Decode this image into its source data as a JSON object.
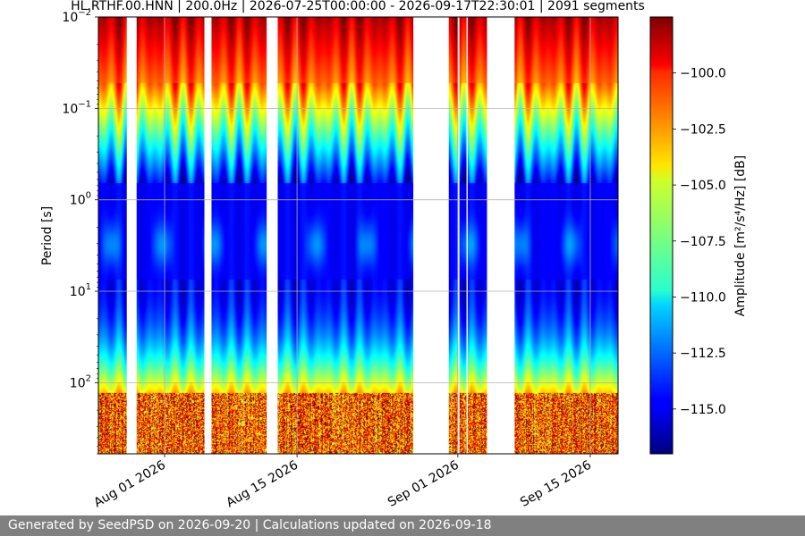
{
  "chart_data": {
    "type": "heatmap",
    "title": "HL.RTHF.00.HNN | 200.0Hz | 2026-07-25T00:00:00 - 2026-09-17T22:30:01 | 2091 segments",
    "xlabel": "",
    "ylabel": "Period [s]",
    "colorbar_label": "Amplitude [m²/s⁴/Hz] [dB]",
    "colormap": "jet",
    "grid": true,
    "x_range": [
      "2026-07-25T00:00:00",
      "2026-09-17T22:30:01"
    ],
    "x_ticks": [
      "Aug 01 2026",
      "Aug 15 2026",
      "Sep 01 2026",
      "Sep 15 2026"
    ],
    "x_tick_dates": [
      "2026-08-01",
      "2026-08-15",
      "2026-09-01",
      "2026-09-15"
    ],
    "y_scale": "log",
    "y_range": [
      0.01,
      600
    ],
    "y_ticks": [
      {
        "base": "10",
        "exp": "−2",
        "value": 0.01
      },
      {
        "base": "10",
        "exp": "−1",
        "value": 0.1
      },
      {
        "base": "10",
        "exp": "0",
        "value": 1
      },
      {
        "base": "10",
        "exp": "1",
        "value": 10
      },
      {
        "base": "10",
        "exp": "2",
        "value": 100
      }
    ],
    "c_range": [
      -117,
      -97.5
    ],
    "c_ticks": [
      "−100.0",
      "−102.5",
      "−105.0",
      "−107.5",
      "−110.0",
      "−112.5",
      "−115.0"
    ],
    "c_tick_values": [
      -100,
      -102.5,
      -105,
      -107.5,
      -110,
      -112.5,
      -115
    ],
    "data_gaps": [
      [
        "2026-07-28T00:00:00",
        "2026-07-29T01:00:00"
      ],
      [
        "2026-08-05T05:00:00",
        "2026-08-05T23:00:00"
      ],
      [
        "2026-08-11T19:00:00",
        "2026-08-12T23:00:00"
      ],
      [
        "2026-08-27T07:00:00",
        "2026-08-31T01:00:00"
      ],
      [
        "2026-09-01T00:00:00",
        "2026-09-01T04:00:00"
      ],
      [
        "2026-09-01T22:00:00",
        "2026-09-02T01:00:00"
      ],
      [
        "2026-09-04T02:00:00",
        "2026-09-07T00:00:00"
      ]
    ]
  },
  "footer": {
    "text": "Generated by SeedPSD on 2026-09-20 | Calculations updated on 2026-09-18"
  }
}
